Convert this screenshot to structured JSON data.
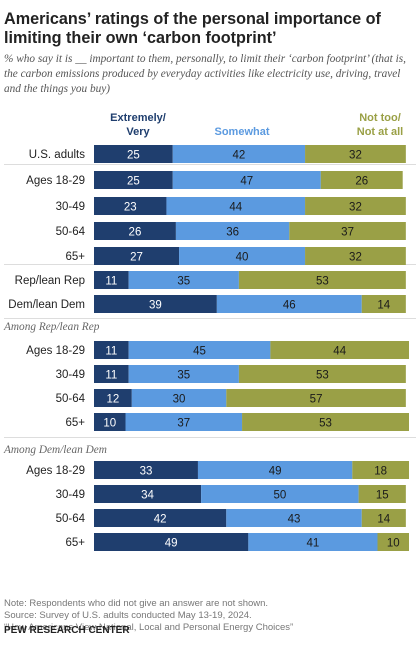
{
  "title": "Americans’ ratings of the personal importance of limiting their own ‘carbon footprint’",
  "subtitle": "% who say it is __ important to them, personally, to limit their ‘carbon footprint’ (that is, the carbon emissions produced by everyday activities like electricity use, driving, travel and the things you buy)",
  "colors": {
    "extremely_very": "#1f3e6e",
    "somewhat": "#5b9ae0",
    "not_too": "#9aa046",
    "divider": "#dddddd"
  },
  "chart_data": {
    "type": "bar",
    "orientation": "horizontal",
    "stacked": true,
    "legend": [
      "Extremely/\nVery",
      "Somewhat",
      "Not too/\nNot at all"
    ],
    "series": [
      {
        "name": "Extremely/ Very",
        "color": "#1f3e6e"
      },
      {
        "name": "Somewhat",
        "color": "#5b9ae0"
      },
      {
        "name": "Not too/ Not at all",
        "color": "#9aa046"
      }
    ],
    "groups": [
      {
        "label": "",
        "rows": [
          {
            "label": "U.S. adults",
            "values": [
              25,
              42,
              32
            ]
          },
          {
            "label": "Ages 18-29",
            "values": [
              25,
              47,
              26
            ]
          },
          {
            "label": "30-49",
            "values": [
              23,
              44,
              32
            ]
          },
          {
            "label": "50-64",
            "values": [
              26,
              36,
              37
            ]
          },
          {
            "label": "65+",
            "values": [
              27,
              40,
              32
            ]
          },
          {
            "label": "Rep/lean Rep",
            "values": [
              11,
              35,
              53
            ]
          },
          {
            "label": "Dem/lean Dem",
            "values": [
              39,
              46,
              14
            ]
          }
        ]
      },
      {
        "label": "Among Rep/lean Rep",
        "rows": [
          {
            "label": "Ages 18-29",
            "values": [
              11,
              45,
              44
            ]
          },
          {
            "label": "30-49",
            "values": [
              11,
              35,
              53
            ]
          },
          {
            "label": "50-64",
            "values": [
              12,
              30,
              57
            ]
          },
          {
            "label": "65+",
            "values": [
              10,
              37,
              53
            ]
          }
        ]
      },
      {
        "label": "Among Dem/lean Dem",
        "rows": [
          {
            "label": "Ages 18-29",
            "values": [
              33,
              49,
              18
            ]
          },
          {
            "label": "30-49",
            "values": [
              34,
              50,
              15
            ]
          },
          {
            "label": "50-64",
            "values": [
              42,
              43,
              14
            ]
          },
          {
            "label": "65+",
            "values": [
              49,
              41,
              10
            ]
          }
        ]
      }
    ]
  },
  "notes": {
    "note": "Note: Respondents who did not give an answer are not shown.",
    "source": "Source: Survey of U.S. adults conducted May 13-19, 2024.",
    "report": "“How Americans View National, Local and Personal Energy Choices”"
  },
  "brand": "PEW RESEARCH CENTER"
}
